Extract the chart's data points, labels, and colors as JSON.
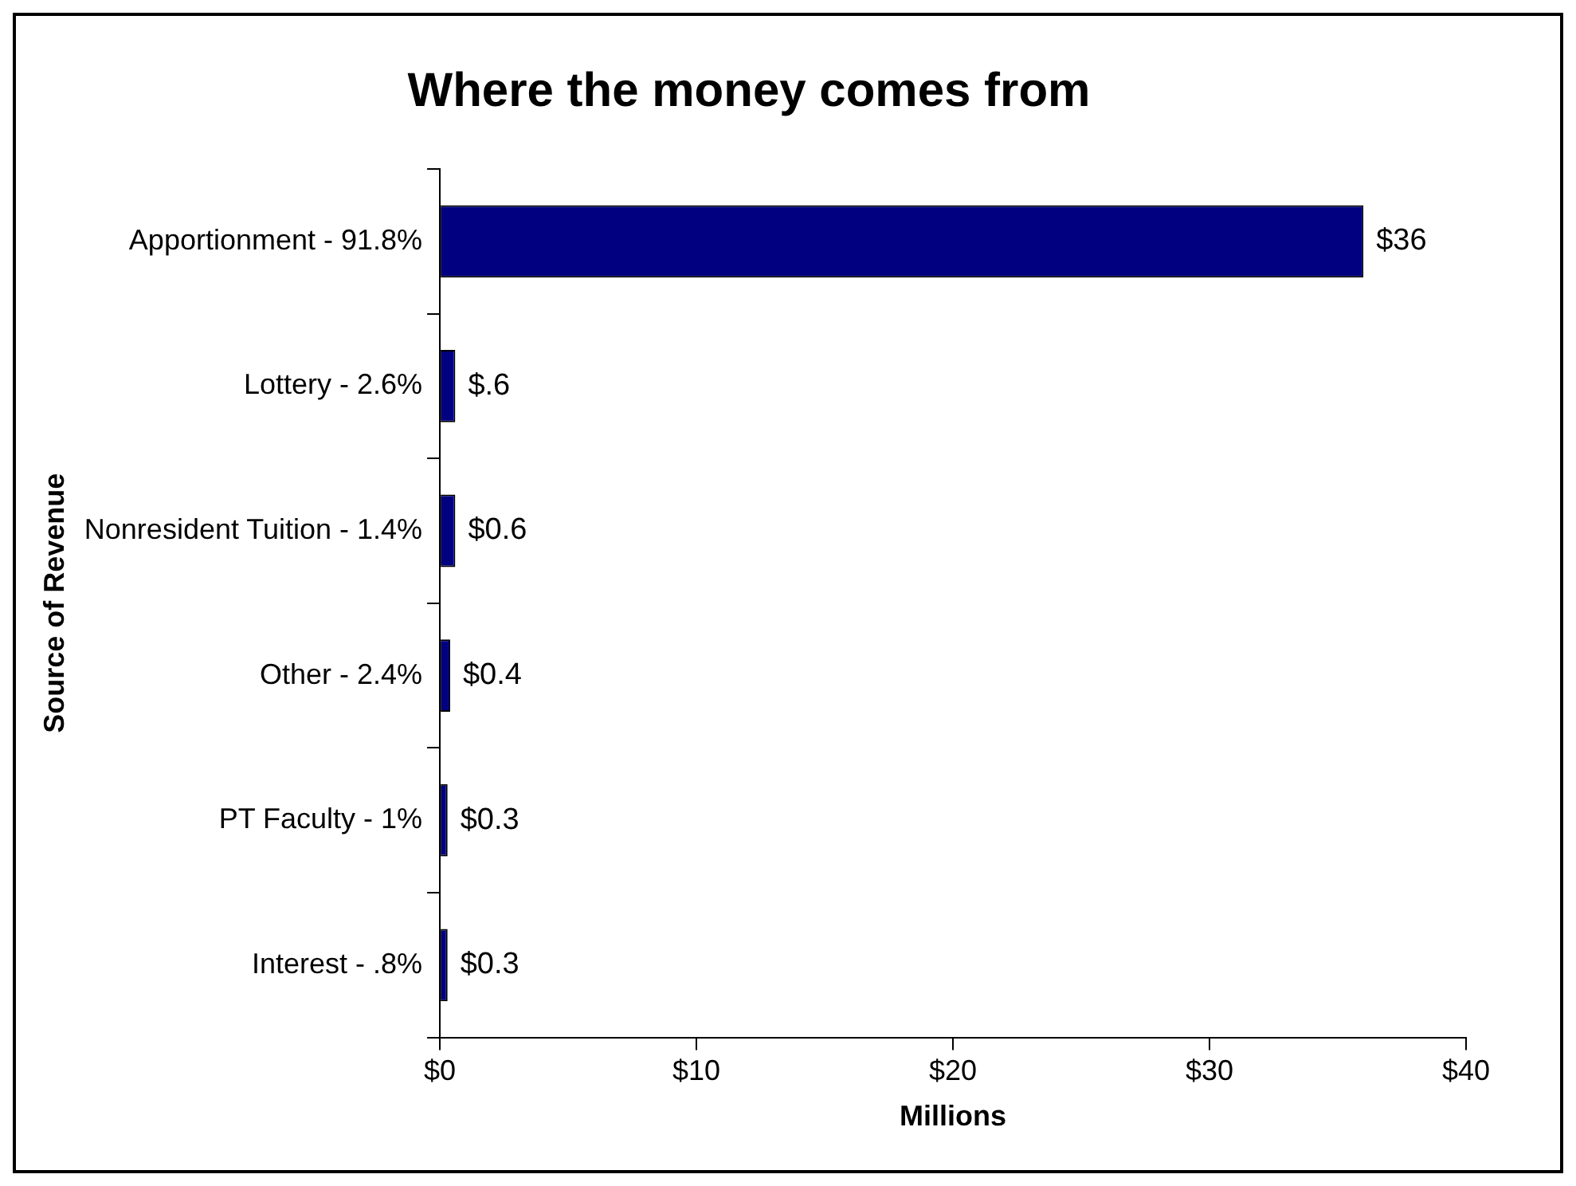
{
  "chart_data": {
    "type": "bar",
    "orientation": "horizontal",
    "title": "Where the money comes from",
    "xlabel": "Millions",
    "ylabel": "Source of Revenue",
    "categories": [
      "Apportionment - 91.8%",
      "Lottery - 2.6%",
      "Nonresident Tuition - 1.4%",
      "Other - 2.4%",
      "PT Faculty - 1%",
      "Interest - .8%"
    ],
    "values": [
      36,
      0.6,
      0.6,
      0.4,
      0.3,
      0.3
    ],
    "value_labels": [
      "$36",
      "$.6",
      "$0.6",
      "$0.4",
      "$0.3",
      "$0.3"
    ],
    "color": "#000080",
    "xlim": [
      0,
      40
    ],
    "xticks": [
      {
        "value": 0,
        "label": "$0"
      },
      {
        "value": 10,
        "label": "$10"
      },
      {
        "value": 20,
        "label": "$20"
      },
      {
        "value": 30,
        "label": "$30"
      },
      {
        "value": 40,
        "label": "$40"
      }
    ],
    "grid": false,
    "legend": false
  }
}
